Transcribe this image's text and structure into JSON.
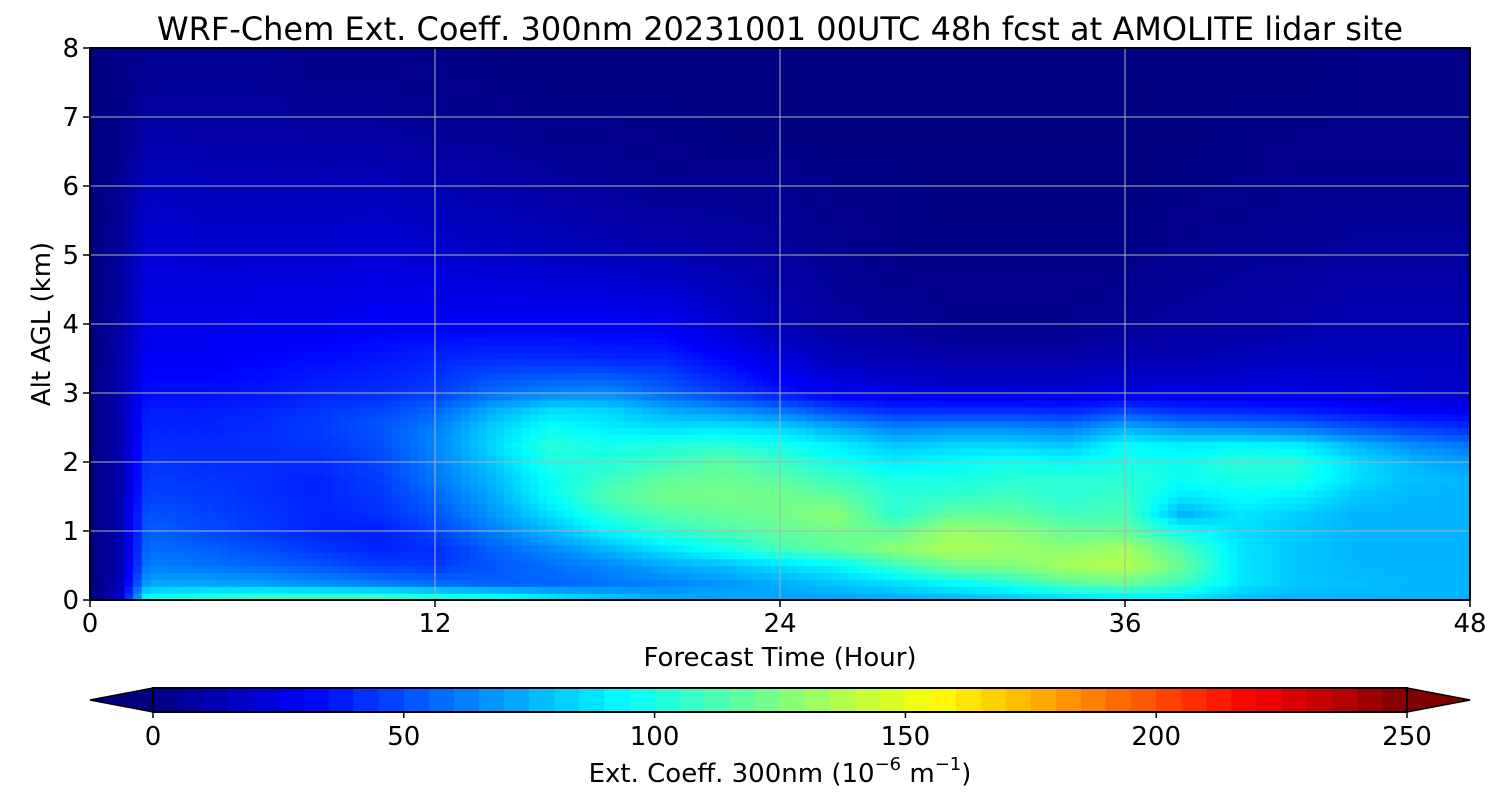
{
  "chart_data": {
    "type": "heatmap",
    "title": "WRF-Chem Ext. Coeff. 300nm  20231001 00UTC 48h fcst at AMOLITE lidar site",
    "xlabel": "Forecast Time (Hour)",
    "ylabel": "Alt AGL (km)",
    "xlim": [
      0,
      48
    ],
    "ylim": [
      0,
      8
    ],
    "xticks": [
      0,
      12,
      24,
      36,
      48
    ],
    "yticks": [
      0,
      1,
      2,
      3,
      4,
      5,
      6,
      7,
      8
    ],
    "grid": true,
    "colorbar": {
      "label_text": "Ext. Coeff. 300nm  (10",
      "label_exp": "−6",
      "label_unit": " m",
      "label_unit_exp": "−1",
      "label_close": ")",
      "range": [
        0,
        250
      ],
      "ticks": [
        0,
        50,
        100,
        150,
        200,
        250
      ],
      "extend": "both",
      "colormap": "jet"
    },
    "x": [
      0,
      1,
      2,
      4,
      6,
      8,
      10,
      12,
      14,
      16,
      18,
      20,
      22,
      24,
      26,
      28,
      30,
      32,
      34,
      36,
      38,
      40,
      42,
      44,
      46,
      48
    ],
    "y": [
      0,
      0.05,
      0.25,
      0.5,
      0.75,
      1,
      1.25,
      1.5,
      1.75,
      2,
      2.25,
      2.5,
      2.75,
      3,
      3.5,
      4,
      5,
      6,
      7,
      8
    ],
    "z": [
      [
        0,
        0,
        115,
        115,
        115,
        115,
        110,
        110,
        105,
        90,
        80,
        75,
        75,
        75,
        75,
        75,
        75,
        75,
        75,
        80,
        80,
        75,
        75,
        75,
        75,
        75
      ],
      [
        0,
        15,
        95,
        100,
        105,
        105,
        105,
        100,
        95,
        85,
        78,
        72,
        72,
        72,
        72,
        75,
        78,
        82,
        88,
        92,
        90,
        80,
        76,
        76,
        75,
        75
      ],
      [
        0,
        12,
        72,
        72,
        70,
        66,
        62,
        58,
        55,
        56,
        60,
        64,
        68,
        74,
        80,
        86,
        94,
        102,
        115,
        120,
        108,
        88,
        80,
        78,
        76,
        76
      ],
      [
        0,
        10,
        62,
        60,
        56,
        52,
        46,
        45,
        52,
        58,
        64,
        72,
        78,
        85,
        92,
        108,
        122,
        126,
        135,
        138,
        120,
        88,
        80,
        76,
        75,
        75
      ],
      [
        0,
        10,
        58,
        55,
        50,
        44,
        40,
        42,
        55,
        65,
        76,
        88,
        98,
        110,
        118,
        128,
        135,
        132,
        128,
        134,
        112,
        88,
        80,
        76,
        75,
        75
      ],
      [
        0,
        10,
        55,
        50,
        45,
        40,
        38,
        48,
        62,
        76,
        92,
        104,
        112,
        118,
        122,
        118,
        132,
        128,
        120,
        118,
        98,
        86,
        80,
        76,
        75,
        75
      ],
      [
        0,
        10,
        52,
        48,
        44,
        40,
        42,
        52,
        68,
        86,
        104,
        114,
        118,
        122,
        128,
        104,
        118,
        118,
        110,
        112,
        74,
        88,
        82,
        76,
        75,
        75
      ],
      [
        0,
        10,
        48,
        46,
        42,
        40,
        44,
        56,
        72,
        94,
        114,
        122,
        124,
        122,
        118,
        104,
        106,
        110,
        104,
        108,
        88,
        94,
        90,
        80,
        76,
        75
      ],
      [
        0,
        10,
        46,
        44,
        42,
        40,
        46,
        60,
        76,
        96,
        108,
        118,
        120,
        116,
        108,
        100,
        100,
        104,
        104,
        104,
        96,
        100,
        100,
        86,
        78,
        76
      ],
      [
        0,
        10,
        44,
        42,
        42,
        42,
        48,
        62,
        80,
        100,
        102,
        108,
        116,
        108,
        98,
        90,
        94,
        98,
        94,
        100,
        96,
        104,
        102,
        86,
        76,
        70
      ],
      [
        0,
        10,
        42,
        42,
        42,
        44,
        50,
        64,
        84,
        104,
        98,
        102,
        104,
        98,
        90,
        80,
        84,
        84,
        80,
        94,
        90,
        92,
        90,
        76,
        66,
        60
      ],
      [
        0,
        10,
        40,
        40,
        42,
        46,
        52,
        62,
        82,
        96,
        90,
        86,
        88,
        84,
        74,
        64,
        66,
        66,
        62,
        74,
        66,
        64,
        60,
        52,
        46,
        42
      ],
      [
        0,
        10,
        38,
        38,
        40,
        44,
        48,
        56,
        74,
        86,
        84,
        74,
        68,
        60,
        48,
        42,
        42,
        42,
        40,
        48,
        42,
        40,
        38,
        34,
        30,
        28
      ],
      [
        0,
        10,
        34,
        34,
        36,
        40,
        42,
        46,
        58,
        64,
        66,
        56,
        46,
        36,
        28,
        24,
        22,
        22,
        22,
        24,
        24,
        24,
        24,
        22,
        20,
        18
      ],
      [
        0,
        10,
        30,
        30,
        32,
        34,
        36,
        40,
        42,
        42,
        40,
        40,
        32,
        22,
        14,
        12,
        10,
        10,
        10,
        12,
        12,
        14,
        16,
        16,
        16,
        16
      ],
      [
        0,
        8,
        26,
        26,
        28,
        28,
        30,
        30,
        30,
        30,
        30,
        28,
        20,
        12,
        8,
        6,
        4,
        4,
        4,
        6,
        8,
        8,
        10,
        12,
        12,
        12
      ],
      [
        0,
        6,
        22,
        20,
        20,
        20,
        22,
        20,
        18,
        16,
        14,
        12,
        10,
        8,
        4,
        2,
        2,
        2,
        2,
        2,
        4,
        6,
        6,
        8,
        8,
        8
      ],
      [
        0,
        4,
        16,
        14,
        14,
        14,
        14,
        12,
        10,
        8,
        6,
        4,
        4,
        4,
        2,
        2,
        0,
        0,
        0,
        0,
        2,
        2,
        4,
        4,
        4,
        4
      ],
      [
        0,
        2,
        8,
        8,
        8,
        6,
        6,
        4,
        4,
        2,
        2,
        2,
        0,
        0,
        0,
        0,
        0,
        0,
        0,
        0,
        0,
        2,
        2,
        2,
        2,
        2
      ],
      [
        0,
        2,
        4,
        4,
        4,
        2,
        2,
        2,
        0,
        0,
        0,
        0,
        0,
        0,
        0,
        0,
        0,
        0,
        0,
        0,
        0,
        0,
        0,
        2,
        2,
        2
      ]
    ]
  }
}
